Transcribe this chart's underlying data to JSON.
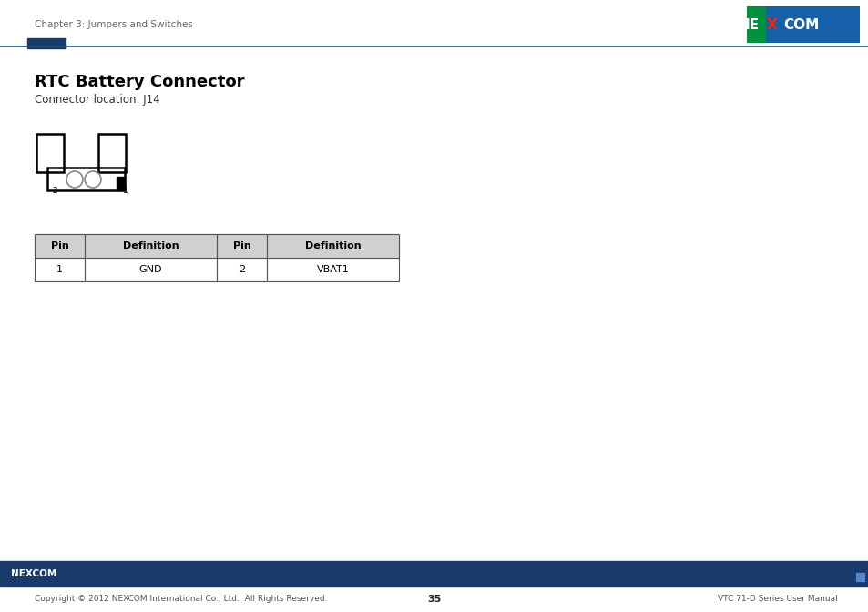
{
  "page_bg": "#ffffff",
  "header_text": "Chapter 3: Jumpers and Switches",
  "header_text_color": "#666666",
  "header_text_size": 7.5,
  "logo_green": "#00923f",
  "logo_blue": "#1560a8",
  "divider_rect_color": "#1a3a6b",
  "divider_line_color": "#1a5276",
  "title": "RTC Battery Connector",
  "title_size": 13,
  "subtitle": "Connector location: J14",
  "subtitle_size": 8.5,
  "table_header": [
    "Pin",
    "Definition",
    "Pin",
    "Definition"
  ],
  "table_row": [
    "1",
    "GND",
    "2",
    "VBAT1"
  ],
  "table_header_bg": "#d0d0d0",
  "table_border_color": "#555555",
  "footer_bar_color": "#1a3a6b",
  "footer_logo_text": "NEXCOM",
  "footer_copyright": "Copyright © 2012 NEXCOM International Co., Ltd.  All Rights Reserved.",
  "footer_page": "35",
  "footer_manual": "VTC 71-D Series User Manual",
  "footer_text_size": 6.5,
  "footer_text_color": "#555555"
}
